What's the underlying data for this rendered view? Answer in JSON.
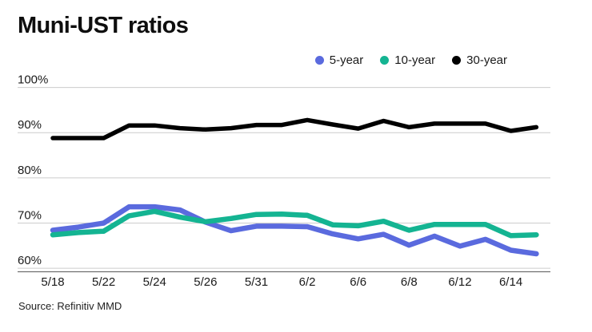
{
  "title": "Muni-UST ratios",
  "source": "Source: Refinitiv MMD",
  "colors": {
    "background": "#ffffff",
    "gridline": "#cccccc",
    "axis_line": "#6f6f6f",
    "tick_text": "#1a1a1a",
    "title_text": "#0e0e0e"
  },
  "legend": {
    "items": [
      {
        "label": "5-year",
        "color": "#5a6ade",
        "icon": "legend-dot"
      },
      {
        "label": "10-year",
        "color": "#14b492",
        "icon": "legend-dot"
      },
      {
        "label": "30-year",
        "color": "#000000",
        "icon": "legend-dot"
      }
    ]
  },
  "chart_data": {
    "type": "line",
    "title": "Muni-UST ratios",
    "xlabel": "",
    "ylabel": "",
    "ylim": [
      60,
      100
    ],
    "grid": true,
    "legend_position": "top-right",
    "y_ticks": [
      60,
      70,
      80,
      90,
      100
    ],
    "y_tick_labels": [
      "60%",
      "70%",
      "80%",
      "90%",
      "100%"
    ],
    "x": [
      "5/18",
      "5/19",
      "5/22",
      "5/23",
      "5/24",
      "5/25",
      "5/26",
      "5/30",
      "5/31",
      "6/1",
      "6/2",
      "6/5",
      "6/6",
      "6/7",
      "6/8",
      "6/9",
      "6/12",
      "6/13",
      "6/14",
      "6/15"
    ],
    "x_tick_labels": [
      "5/18",
      "5/22",
      "5/24",
      "5/26",
      "5/31",
      "6/2",
      "6/6",
      "6/8",
      "6/12",
      "6/14"
    ],
    "tick_every": 2,
    "series": [
      {
        "name": "5-year",
        "color": "#5a6ade",
        "values": [
          68.4,
          69.1,
          70.0,
          73.6,
          73.6,
          72.9,
          70.2,
          68.3,
          69.3,
          69.3,
          69.2,
          67.6,
          66.5,
          67.5,
          65.1,
          67.1,
          64.9,
          66.4,
          64.0,
          63.2
        ]
      },
      {
        "name": "10-year",
        "color": "#14b492",
        "values": [
          67.4,
          67.9,
          68.2,
          71.6,
          72.6,
          71.3,
          70.3,
          71.0,
          71.9,
          72.0,
          71.7,
          69.6,
          69.4,
          70.4,
          68.4,
          69.7,
          69.7,
          69.7,
          67.2,
          67.4
        ]
      },
      {
        "name": "30-year",
        "color": "#000000",
        "values": [
          88.8,
          88.8,
          88.8,
          91.6,
          91.6,
          91.0,
          90.7,
          91.0,
          91.7,
          91.7,
          92.8,
          91.8,
          90.9,
          92.6,
          91.2,
          92.0,
          92.0,
          92.0,
          90.4,
          91.2
        ]
      }
    ]
  }
}
